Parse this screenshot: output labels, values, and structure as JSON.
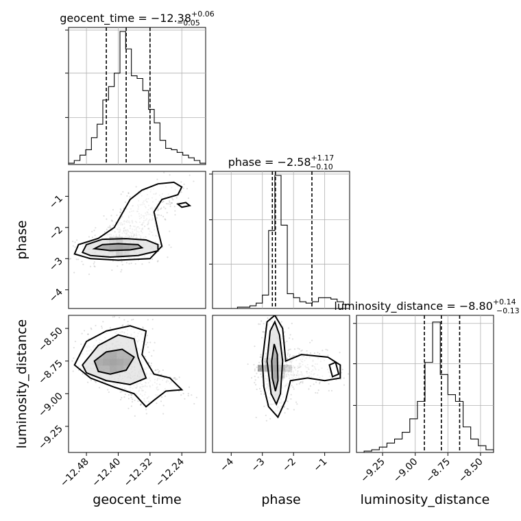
{
  "chart_data": {
    "type": "corner",
    "parameters": [
      {
        "name": "geocent_time",
        "range": [
          -12.525,
          -12.18
        ],
        "ticks": [
          -12.48,
          -12.4,
          -12.32,
          -12.24
        ],
        "tick_labels": [
          "−12.48",
          "−12.40",
          "−12.32",
          "−12.24"
        ],
        "title": {
          "main": "geocent_time = −12.38",
          "sup": "+0.06",
          "sub": "−0.05"
        },
        "axis_label": "geocent_time",
        "quantiles": [
          -12.43,
          -12.38,
          -12.32
        ],
        "hist_max": 1.0,
        "hist_ticks": [
          0.35,
          0.68,
          1.0
        ],
        "hist_counts": [
          0.01,
          0.03,
          0.07,
          0.11,
          0.2,
          0.3,
          0.48,
          0.58,
          0.68,
          0.99,
          0.86,
          0.66,
          0.64,
          0.55,
          0.41,
          0.31,
          0.18,
          0.12,
          0.11,
          0.09,
          0.07,
          0.05,
          0.03,
          0.01
        ]
      },
      {
        "name": "phase",
        "range": [
          -4.6,
          -0.2
        ],
        "ticks": [
          -4,
          -3,
          -2,
          -1
        ],
        "tick_labels": [
          "−4",
          "−3",
          "−2",
          "−1"
        ],
        "title": {
          "main": "phase = −2.58",
          "sup": "+1.17",
          "sub": "−0.10"
        },
        "axis_label": "phase",
        "quantiles": [
          -2.68,
          -2.58,
          -1.41
        ],
        "hist_max": 1.0,
        "hist_ticks": [
          0.33,
          0.66,
          1.0
        ],
        "hist_counts": [
          0.0,
          0.0,
          0.0,
          0.0,
          0.01,
          0.01,
          0.02,
          0.04,
          0.1,
          0.58,
          0.99,
          0.62,
          0.11,
          0.08,
          0.05,
          0.04,
          0.05,
          0.08,
          0.08,
          0.07,
          0.05,
          0.03
        ]
      },
      {
        "name": "luminosity_distance",
        "range": [
          -9.45,
          -8.4
        ],
        "ticks": [
          -9.25,
          -9.0,
          -8.75,
          -8.5
        ],
        "tick_labels": [
          "−9.25",
          "−9.00",
          "−8.75",
          "−8.50"
        ],
        "title": {
          "main": "luminosity_distance = −8.80",
          "sup": "+0.14",
          "sub": "−0.13"
        },
        "axis_label": "luminosity_distance",
        "quantiles": [
          -8.93,
          -8.8,
          -8.66
        ],
        "hist_max": 1.0,
        "hist_ticks": [
          0.35,
          0.66,
          0.96
        ],
        "hist_counts": [
          0.0,
          0.01,
          0.02,
          0.04,
          0.07,
          0.1,
          0.15,
          0.25,
          0.38,
          0.67,
          0.97,
          0.58,
          0.43,
          0.38,
          0.19,
          0.1,
          0.05,
          0.02
        ]
      }
    ],
    "pairs": [
      {
        "x_param": "geocent_time",
        "y_param": "phase",
        "contour_inner": [
          [
            -12.46,
            -2.68
          ],
          [
            -12.44,
            -2.55
          ],
          [
            -12.4,
            -2.52
          ],
          [
            -12.35,
            -2.55
          ],
          [
            -12.34,
            -2.65
          ],
          [
            -12.37,
            -2.72
          ],
          [
            -12.42,
            -2.74
          ]
        ],
        "contour_mid": [
          [
            -12.49,
            -2.8
          ],
          [
            -12.48,
            -2.55
          ],
          [
            -12.44,
            -2.38
          ],
          [
            -12.38,
            -2.36
          ],
          [
            -12.33,
            -2.4
          ],
          [
            -12.3,
            -2.55
          ],
          [
            -12.3,
            -2.75
          ],
          [
            -12.35,
            -2.9
          ],
          [
            -12.42,
            -2.95
          ],
          [
            -12.47,
            -2.9
          ]
        ],
        "contour_outer": [
          [
            -12.51,
            -2.85
          ],
          [
            -12.5,
            -2.55
          ],
          [
            -12.45,
            -2.35
          ],
          [
            -12.41,
            -2.0
          ],
          [
            -12.39,
            -1.55
          ],
          [
            -12.37,
            -1.1
          ],
          [
            -12.34,
            -0.8
          ],
          [
            -12.3,
            -0.6
          ],
          [
            -12.26,
            -0.55
          ],
          [
            -12.24,
            -0.7
          ],
          [
            -12.25,
            -0.95
          ],
          [
            -12.29,
            -1.1
          ],
          [
            -12.31,
            -1.5
          ],
          [
            -12.3,
            -2.1
          ],
          [
            -12.29,
            -2.6
          ],
          [
            -12.32,
            -3.0
          ],
          [
            -12.4,
            -3.05
          ],
          [
            -12.47,
            -3.0
          ]
        ],
        "contour_island": [
          [
            -12.25,
            -1.25
          ],
          [
            -12.23,
            -1.2
          ],
          [
            -12.22,
            -1.3
          ],
          [
            -12.24,
            -1.35
          ]
        ]
      },
      {
        "x_param": "geocent_time",
        "y_param": "luminosity_distance",
        "contour_inner": [
          [
            -12.46,
            -8.75
          ],
          [
            -12.43,
            -8.68
          ],
          [
            -12.39,
            -8.66
          ],
          [
            -12.36,
            -8.72
          ],
          [
            -12.38,
            -8.82
          ],
          [
            -12.42,
            -8.85
          ],
          [
            -12.45,
            -8.83
          ]
        ],
        "contour_mid": [
          [
            -12.49,
            -8.78
          ],
          [
            -12.45,
            -8.63
          ],
          [
            -12.4,
            -8.55
          ],
          [
            -12.36,
            -8.58
          ],
          [
            -12.35,
            -8.72
          ],
          [
            -12.33,
            -8.88
          ],
          [
            -12.37,
            -8.93
          ],
          [
            -12.43,
            -8.9
          ],
          [
            -12.48,
            -8.84
          ]
        ],
        "contour_outer": [
          [
            -12.51,
            -8.78
          ],
          [
            -12.48,
            -8.6
          ],
          [
            -12.43,
            -8.52
          ],
          [
            -12.37,
            -8.48
          ],
          [
            -12.33,
            -8.52
          ],
          [
            -12.34,
            -8.7
          ],
          [
            -12.31,
            -8.85
          ],
          [
            -12.27,
            -8.88
          ],
          [
            -12.24,
            -8.97
          ],
          [
            -12.28,
            -8.98
          ],
          [
            -12.31,
            -9.05
          ],
          [
            -12.33,
            -9.1
          ],
          [
            -12.36,
            -9.0
          ],
          [
            -12.41,
            -8.95
          ],
          [
            -12.47,
            -8.88
          ]
        ]
      },
      {
        "x_param": "phase",
        "y_param": "luminosity_distance",
        "contour_inner": [
          [
            -2.7,
            -8.75
          ],
          [
            -2.62,
            -8.62
          ],
          [
            -2.52,
            -8.7
          ],
          [
            -2.5,
            -8.9
          ],
          [
            -2.58,
            -8.98
          ],
          [
            -2.68,
            -8.88
          ]
        ],
        "contour_mid": [
          [
            -2.85,
            -8.75
          ],
          [
            -2.75,
            -8.52
          ],
          [
            -2.6,
            -8.45
          ],
          [
            -2.45,
            -8.55
          ],
          [
            -2.35,
            -8.75
          ],
          [
            -2.42,
            -9.0
          ],
          [
            -2.55,
            -9.08
          ],
          [
            -2.72,
            -9.0
          ]
        ],
        "contour_outer": [
          [
            -3.0,
            -8.75
          ],
          [
            -2.85,
            -8.45
          ],
          [
            -2.6,
            -8.4
          ],
          [
            -2.35,
            -8.5
          ],
          [
            -2.25,
            -8.75
          ],
          [
            -1.75,
            -8.7
          ],
          [
            -0.9,
            -8.72
          ],
          [
            -0.5,
            -8.78
          ],
          [
            -0.5,
            -8.88
          ],
          [
            -1.0,
            -8.9
          ],
          [
            -1.55,
            -8.88
          ],
          [
            -2.1,
            -8.9
          ],
          [
            -2.25,
            -9.05
          ],
          [
            -2.5,
            -9.18
          ],
          [
            -2.8,
            -9.1
          ],
          [
            -2.95,
            -8.95
          ]
        ],
        "contour_island": [
          [
            -0.85,
            -8.78
          ],
          [
            -0.65,
            -8.76
          ],
          [
            -0.55,
            -8.85
          ],
          [
            -0.75,
            -8.87
          ]
        ]
      }
    ]
  }
}
